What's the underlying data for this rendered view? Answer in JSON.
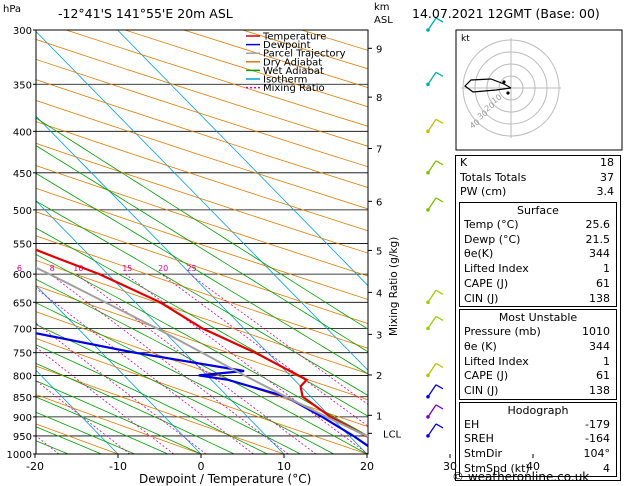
{
  "header": {
    "location": "-12°41'S 141°55'E 20m ASL",
    "valid_time": "14.07.2021 12GMT (Base: 00)",
    "hpa_label": "hPa",
    "km_label": "km",
    "asl_label": "ASL",
    "mixing_ratio_label": "Mixing Ratio (g/kg)",
    "copyright": "© weatheronline.co.uk"
  },
  "chart_data": {
    "type": "line",
    "xlabel": "Dewpoint / Temperature (°C)",
    "x_ticks": [
      -30,
      -20,
      -10,
      0,
      10,
      20,
      30,
      40
    ],
    "pressure_levels": [
      300,
      350,
      400,
      450,
      500,
      550,
      600,
      650,
      700,
      750,
      800,
      850,
      900,
      950,
      1000
    ],
    "km_ticks": [
      {
        "label": "9",
        "p": 316
      },
      {
        "label": "8",
        "p": 363
      },
      {
        "label": "7",
        "p": 420
      },
      {
        "label": "6",
        "p": 488
      },
      {
        "label": "5",
        "p": 561
      },
      {
        "label": "4",
        "p": 632
      },
      {
        "label": "3",
        "p": 712
      },
      {
        "label": "2",
        "p": 799
      },
      {
        "label": "1",
        "p": 896
      },
      {
        "label": "LCL",
        "p": 943
      }
    ],
    "mixing_ratio_labels": [
      "1",
      "2",
      "3",
      "4",
      "6",
      "8",
      "10",
      "15",
      "20",
      "25"
    ],
    "legend": [
      {
        "name": "Temperature",
        "color": "#e00000"
      },
      {
        "name": "Dewpoint",
        "color": "#0000e0"
      },
      {
        "name": "Parcel Trajectory",
        "color": "#a0a0a0"
      },
      {
        "name": "Dry Adiabat",
        "color": "#e07a00"
      },
      {
        "name": "Wet Adiabat",
        "color": "#00a000"
      },
      {
        "name": "Isotherm",
        "color": "#00a0e0"
      },
      {
        "name": "Mixing Ratio",
        "color": "#e000a0"
      }
    ],
    "series": [
      {
        "name": "Temperature",
        "points": [
          [
            1000,
            25.6
          ],
          [
            975,
            24
          ],
          [
            950,
            22
          ],
          [
            925,
            21
          ],
          [
            900,
            20
          ],
          [
            875,
            19.5
          ],
          [
            850,
            19
          ],
          [
            825,
            20
          ],
          [
            810,
            21.5
          ],
          [
            800,
            21
          ],
          [
            750,
            18.5
          ],
          [
            700,
            15
          ],
          [
            675,
            14
          ],
          [
            650,
            13
          ],
          [
            600,
            9
          ],
          [
            575,
            6
          ],
          [
            550,
            3
          ],
          [
            525,
            0
          ],
          [
            500,
            -3
          ],
          [
            475,
            -6
          ],
          [
            450,
            -9
          ],
          [
            425,
            -12
          ],
          [
            400,
            -17
          ],
          [
            350,
            -26
          ],
          [
            300,
            -36
          ]
        ]
      },
      {
        "name": "Dewpoint",
        "points": [
          [
            1000,
            21.5
          ],
          [
            950,
            20.5
          ],
          [
            900,
            19
          ],
          [
            850,
            17
          ],
          [
            810,
            12
          ],
          [
            800,
            9
          ],
          [
            790,
            15
          ],
          [
            750,
            4
          ],
          [
            700,
            -8
          ],
          [
            660,
            -42
          ],
          [
            650,
            -43
          ],
          [
            600,
            -47
          ],
          [
            550,
            -53
          ],
          [
            530,
            -55
          ],
          [
            500,
            -58
          ],
          [
            450,
            -65
          ],
          [
            425,
            -69
          ],
          [
            400,
            -62
          ],
          [
            350,
            -70
          ],
          [
            320,
            -73
          ],
          [
            300,
            -79
          ]
        ]
      },
      {
        "name": "Parcel Trajectory",
        "points": [
          [
            1000,
            25.6
          ],
          [
            943,
            21.7
          ],
          [
            900,
            19.5
          ],
          [
            850,
            17
          ],
          [
            800,
            14.5
          ],
          [
            700,
            9.5
          ],
          [
            600,
            3
          ],
          [
            500,
            -6
          ],
          [
            450,
            -11
          ],
          [
            400,
            -17
          ],
          [
            350,
            -25
          ],
          [
            300,
            -36
          ]
        ]
      }
    ]
  },
  "hodograph": {
    "label": "kt",
    "ring_labels": [
      "10",
      "20",
      "30",
      "40"
    ]
  },
  "indices": [
    {
      "label": "K",
      "value": "18"
    },
    {
      "label": "Totals Totals",
      "value": "37"
    },
    {
      "label": "PW (cm)",
      "value": "3.4"
    }
  ],
  "surface": {
    "title": "Surface",
    "rows": [
      {
        "label": "Temp (°C)",
        "value": "25.6"
      },
      {
        "label": "Dewp (°C)",
        "value": "21.5"
      },
      {
        "label": "θe(K)",
        "value": "344"
      },
      {
        "label": "Lifted Index",
        "value": "1"
      },
      {
        "label": "CAPE (J)",
        "value": "61"
      },
      {
        "label": "CIN (J)",
        "value": "138"
      }
    ]
  },
  "most_unstable": {
    "title": "Most Unstable",
    "rows": [
      {
        "label": "Pressure (mb)",
        "value": "1010"
      },
      {
        "label": "θe (K)",
        "value": "344"
      },
      {
        "label": "Lifted Index",
        "value": "1"
      },
      {
        "label": "CAPE (J)",
        "value": "61"
      },
      {
        "label": "CIN (J)",
        "value": "138"
      }
    ]
  },
  "hodograph_params": {
    "title": "Hodograph",
    "rows": [
      {
        "label": "EH",
        "value": "-179"
      },
      {
        "label": "SREH",
        "value": "-164"
      },
      {
        "label": "StmDir",
        "value": "104°"
      },
      {
        "label": "StmSpd (kt)",
        "value": "4"
      }
    ]
  }
}
